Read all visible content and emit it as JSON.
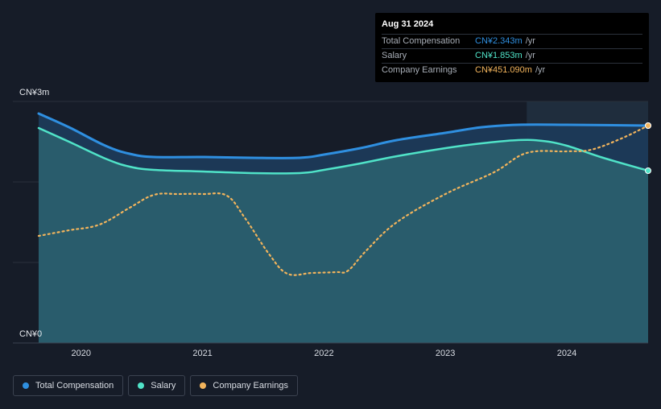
{
  "chart_data": {
    "type": "area",
    "y_axis": {
      "top_label": "CN¥3m",
      "bottom_label": "CN¥0",
      "ylim": [
        0,
        3.0
      ],
      "unit": "CN¥m"
    },
    "x_ticks": [
      "2020",
      "2021",
      "2022",
      "2023",
      "2024"
    ],
    "x_range": [
      2019.65,
      2024.67
    ],
    "forecast_start": 2023.67,
    "series": [
      {
        "name": "Total Compensation",
        "color": "#2f8fe0",
        "style": "area",
        "points": [
          [
            2019.65,
            2.85
          ],
          [
            2019.9,
            2.68
          ],
          [
            2020.2,
            2.45
          ],
          [
            2020.4,
            2.35
          ],
          [
            2020.6,
            2.31
          ],
          [
            2021.0,
            2.31
          ],
          [
            2021.4,
            2.3
          ],
          [
            2021.8,
            2.3
          ],
          [
            2022.0,
            2.34
          ],
          [
            2022.3,
            2.42
          ],
          [
            2022.6,
            2.52
          ],
          [
            2023.0,
            2.61
          ],
          [
            2023.3,
            2.68
          ],
          [
            2023.6,
            2.71
          ],
          [
            2024.0,
            2.71
          ],
          [
            2024.67,
            2.7
          ]
        ]
      },
      {
        "name": "Salary",
        "color": "#50e3c8",
        "style": "area",
        "points": [
          [
            2019.65,
            2.67
          ],
          [
            2019.9,
            2.5
          ],
          [
            2020.2,
            2.29
          ],
          [
            2020.4,
            2.19
          ],
          [
            2020.6,
            2.15
          ],
          [
            2021.0,
            2.13
          ],
          [
            2021.4,
            2.11
          ],
          [
            2021.8,
            2.11
          ],
          [
            2022.0,
            2.15
          ],
          [
            2022.3,
            2.23
          ],
          [
            2022.6,
            2.32
          ],
          [
            2023.0,
            2.42
          ],
          [
            2023.3,
            2.48
          ],
          [
            2023.6,
            2.52
          ],
          [
            2023.8,
            2.51
          ],
          [
            2024.0,
            2.45
          ],
          [
            2024.3,
            2.3
          ],
          [
            2024.67,
            2.14
          ]
        ]
      },
      {
        "name": "Company Earnings",
        "color": "#f2b45c",
        "style": "dotted",
        "points": [
          [
            2019.65,
            1.33
          ],
          [
            2019.9,
            1.4
          ],
          [
            2020.15,
            1.47
          ],
          [
            2020.4,
            1.68
          ],
          [
            2020.6,
            1.84
          ],
          [
            2020.8,
            1.85
          ],
          [
            2021.0,
            1.85
          ],
          [
            2021.2,
            1.83
          ],
          [
            2021.35,
            1.55
          ],
          [
            2021.55,
            1.1
          ],
          [
            2021.7,
            0.86
          ],
          [
            2021.9,
            0.87
          ],
          [
            2022.1,
            0.88
          ],
          [
            2022.2,
            0.9
          ],
          [
            2022.35,
            1.15
          ],
          [
            2022.6,
            1.5
          ],
          [
            2023.0,
            1.85
          ],
          [
            2023.4,
            2.12
          ],
          [
            2023.67,
            2.36
          ],
          [
            2024.0,
            2.38
          ],
          [
            2024.2,
            2.4
          ],
          [
            2024.45,
            2.54
          ],
          [
            2024.67,
            2.7
          ]
        ]
      }
    ]
  },
  "tooltip": {
    "date": "Aug 31 2024",
    "rows": [
      {
        "name": "Total Compensation",
        "value": "CN¥2.343m",
        "unit": "/yr",
        "color": "#2f8fe0"
      },
      {
        "name": "Salary",
        "value": "CN¥1.853m",
        "unit": "/yr",
        "color": "#50e3c8"
      },
      {
        "name": "Company Earnings",
        "value": "CN¥451.090m",
        "unit": "/yr",
        "color": "#f2b45c"
      }
    ]
  },
  "legend": [
    {
      "label": "Total Compensation",
      "color": "#2f8fe0"
    },
    {
      "label": "Salary",
      "color": "#50e3c8"
    },
    {
      "label": "Company Earnings",
      "color": "#f2b45c"
    }
  ]
}
